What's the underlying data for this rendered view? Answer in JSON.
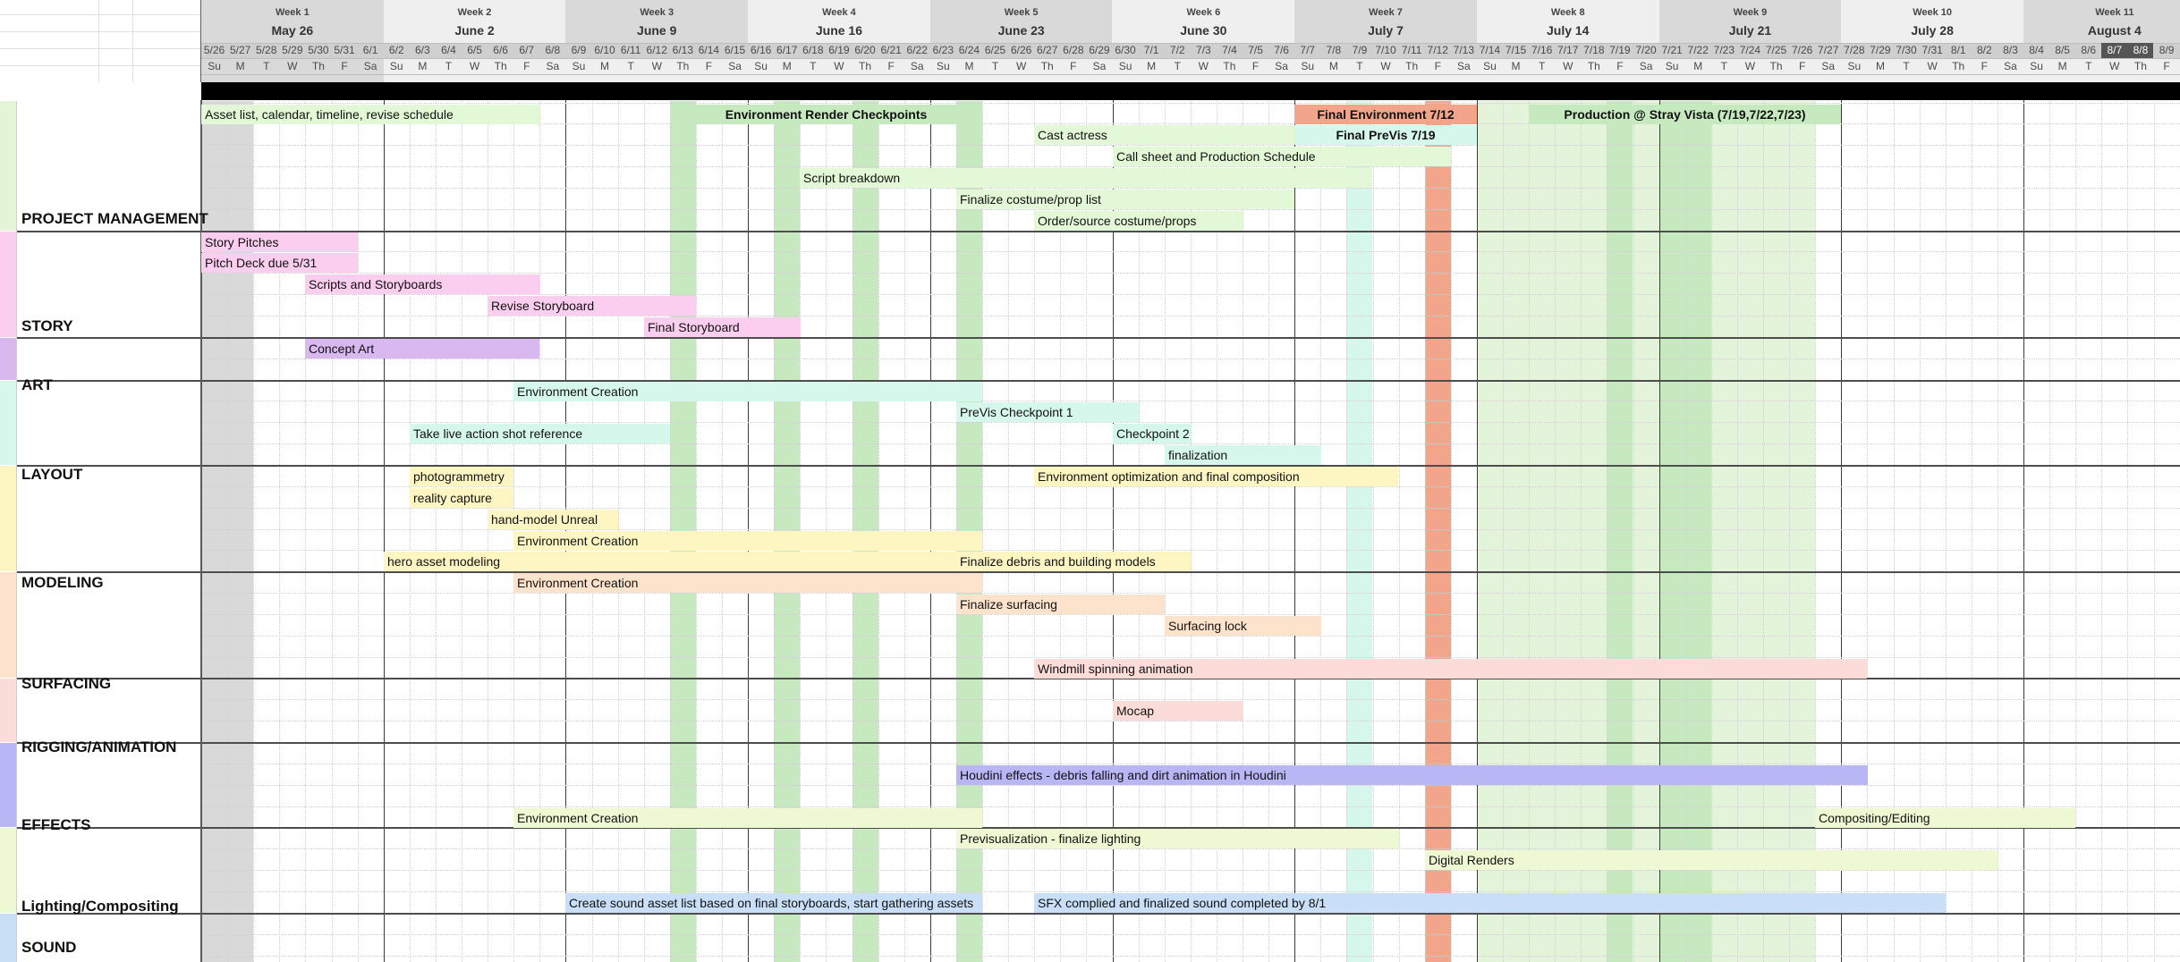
{
  "colors": {
    "header_bg": "#efefef",
    "header_border": "#bdbdbd",
    "weekend_gray": "#d9d9d9",
    "checkpoint_green": "#c6e9bf",
    "final_orange": "#f2a58a",
    "production_green": "#e3f4da",
    "black_bar": "#000000",
    "grid_dotted": "#d0d0d0",
    "grid_week": "#3c3c3c"
  },
  "weeks": [
    {
      "label": "Week 1",
      "date": "May 26"
    },
    {
      "label": "Week 2",
      "date": "June 2"
    },
    {
      "label": "Week 3",
      "date": "June 9"
    },
    {
      "label": "Week 4",
      "date": "June 16"
    },
    {
      "label": "Week 5",
      "date": "June 23"
    },
    {
      "label": "Week 6",
      "date": "June 30"
    },
    {
      "label": "Week 7",
      "date": "July 7"
    },
    {
      "label": "Week 8",
      "date": "July 14"
    },
    {
      "label": "Week 9",
      "date": "July 21"
    },
    {
      "label": "Week 10",
      "date": "July 28"
    },
    {
      "label": "Week 11",
      "date": "August 4"
    }
  ],
  "days": [
    "5/26",
    "5/27",
    "5/28",
    "5/29",
    "5/30",
    "5/31",
    "6/1",
    "6/2",
    "6/3",
    "6/4",
    "6/5",
    "6/6",
    "6/7",
    "6/8",
    "6/9",
    "6/10",
    "6/11",
    "6/12",
    "6/13",
    "6/14",
    "6/15",
    "6/16",
    "6/17",
    "6/18",
    "6/19",
    "6/20",
    "6/21",
    "6/22",
    "6/23",
    "6/24",
    "6/25",
    "6/26",
    "6/27",
    "6/28",
    "6/29",
    "6/30",
    "7/1",
    "7/2",
    "7/3",
    "7/4",
    "7/5",
    "7/6",
    "7/7",
    "7/8",
    "7/9",
    "7/10",
    "7/11",
    "7/12",
    "7/13",
    "7/14",
    "7/15",
    "7/16",
    "7/17",
    "7/18",
    "7/19",
    "7/20",
    "7/21",
    "7/22",
    "7/23",
    "7/24",
    "7/25",
    "7/26",
    "7/27",
    "7/28",
    "7/29",
    "7/30",
    "7/31",
    "8/1",
    "8/2",
    "8/3",
    "8/4",
    "8/5",
    "8/6",
    "8/7",
    "8/8",
    "8/9"
  ],
  "dows": [
    "Su",
    "M",
    "T",
    "W",
    "Th",
    "F",
    "Sa"
  ],
  "departments": [
    {
      "name": "PROJECT MANAGEMENT",
      "color": "#e3f4d7"
    },
    {
      "name": "STORY",
      "color": "#fbcdee"
    },
    {
      "name": "ART",
      "color": "#d9b8f0"
    },
    {
      "name": "LAYOUT",
      "color": "#d6f7ec"
    },
    {
      "name": "MODELING",
      "color": "#fdf6c3"
    },
    {
      "name": "SURFACING",
      "color": "#fde3cc"
    },
    {
      "name": "RIGGING/ANIMATION",
      "color": "#fbdcd8"
    },
    {
      "name": "EFFECTS",
      "color": "#b8b6f5"
    },
    {
      "name": "Lighting/Compositing",
      "color": "#eef8d2"
    },
    {
      "name": "SOUND",
      "color": "#c9dff7"
    }
  ],
  "tasks": [
    {
      "label": "Asset list, calendar, timeline, revise schedule",
      "color": "#e3f8d6"
    },
    {
      "label": "Environment Render Checkpoints",
      "color": "#c6e9bf"
    },
    {
      "label": "Final Environment 7/12",
      "color": "#f2a58a"
    },
    {
      "label": "Production @ Stray Vista (7/19,7/22,7/23)",
      "color": "#c6e9bf"
    },
    {
      "label": "Cast actress",
      "color": "#e3f8d6"
    },
    {
      "label": "Final PreVis 7/19",
      "color": "#d6f7ec"
    },
    {
      "label": "Call sheet and Production Schedule",
      "color": "#e3f8d6"
    },
    {
      "label": "Script breakdown",
      "color": "#e3f8d6"
    },
    {
      "label": "Finalize costume/prop list",
      "color": "#e3f8d6"
    },
    {
      "label": "Order/source costume/props",
      "color": "#e3f8d6"
    },
    {
      "label": "Story Pitches",
      "color": "#fbcdee"
    },
    {
      "label": "Pitch Deck due 5/31",
      "color": "#fbcdee"
    },
    {
      "label": "Scripts and Storyboards",
      "color": "#fbcdee"
    },
    {
      "label": "Revise Storyboard",
      "color": "#fbcdee"
    },
    {
      "label": "Final Storyboard",
      "color": "#fbcdee"
    },
    {
      "label": "Concept Art",
      "color": "#d9b8f0"
    },
    {
      "label": "Environment Creation",
      "color": "#d6f7ec"
    },
    {
      "label": "PreVis Checkpoint 1",
      "color": "#d6f7ec"
    },
    {
      "label": "Take live action shot reference",
      "color": "#d6f7ec"
    },
    {
      "label": "Checkpoint 2",
      "color": "#d6f7ec"
    },
    {
      "label": "finalization",
      "color": "#d6f7ec"
    },
    {
      "label": "photogrammetry",
      "color": "#fdf6c3"
    },
    {
      "label": "Environment optimization and final composition",
      "color": "#fdf6c3"
    },
    {
      "label": "reality capture",
      "color": "#fdf6c3"
    },
    {
      "label": "hand-model Unreal",
      "color": "#fdf6c3"
    },
    {
      "label": "Environment Creation",
      "color": "#fdf6c3"
    },
    {
      "label": "hero asset modeling",
      "color": "#fdf6c3"
    },
    {
      "label": "Finalize debris and building models",
      "color": "#fdf6c3"
    },
    {
      "label": "Environment Creation",
      "color": "#fde3cc"
    },
    {
      "label": "Finalize surfacing",
      "color": "#fde3cc"
    },
    {
      "label": "Surfacing lock",
      "color": "#fde3cc"
    },
    {
      "label": "Windmill spinning animation",
      "color": "#fbdcd8"
    },
    {
      "label": "Mocap",
      "color": "#fbdcd8"
    },
    {
      "label": "Houdini effects - debris falling and dirt animation in Houdini",
      "color": "#b8b6f5"
    },
    {
      "label": "Environment Creation",
      "color": "#eef8d2"
    },
    {
      "label": "Compositing/Editing",
      "color": "#eef8d2"
    },
    {
      "label": "Previsualization - finalize lighting",
      "color": "#eef8d2"
    },
    {
      "label": "Digital Renders",
      "color": "#eef8d2"
    },
    {
      "label": "Create sound asset list based on final storyboards, start gathering assets",
      "color": "#c9dff7"
    },
    {
      "label": "SFX complied and finalized sound completed by 8/1",
      "color": "#c9dff7"
    }
  ]
}
